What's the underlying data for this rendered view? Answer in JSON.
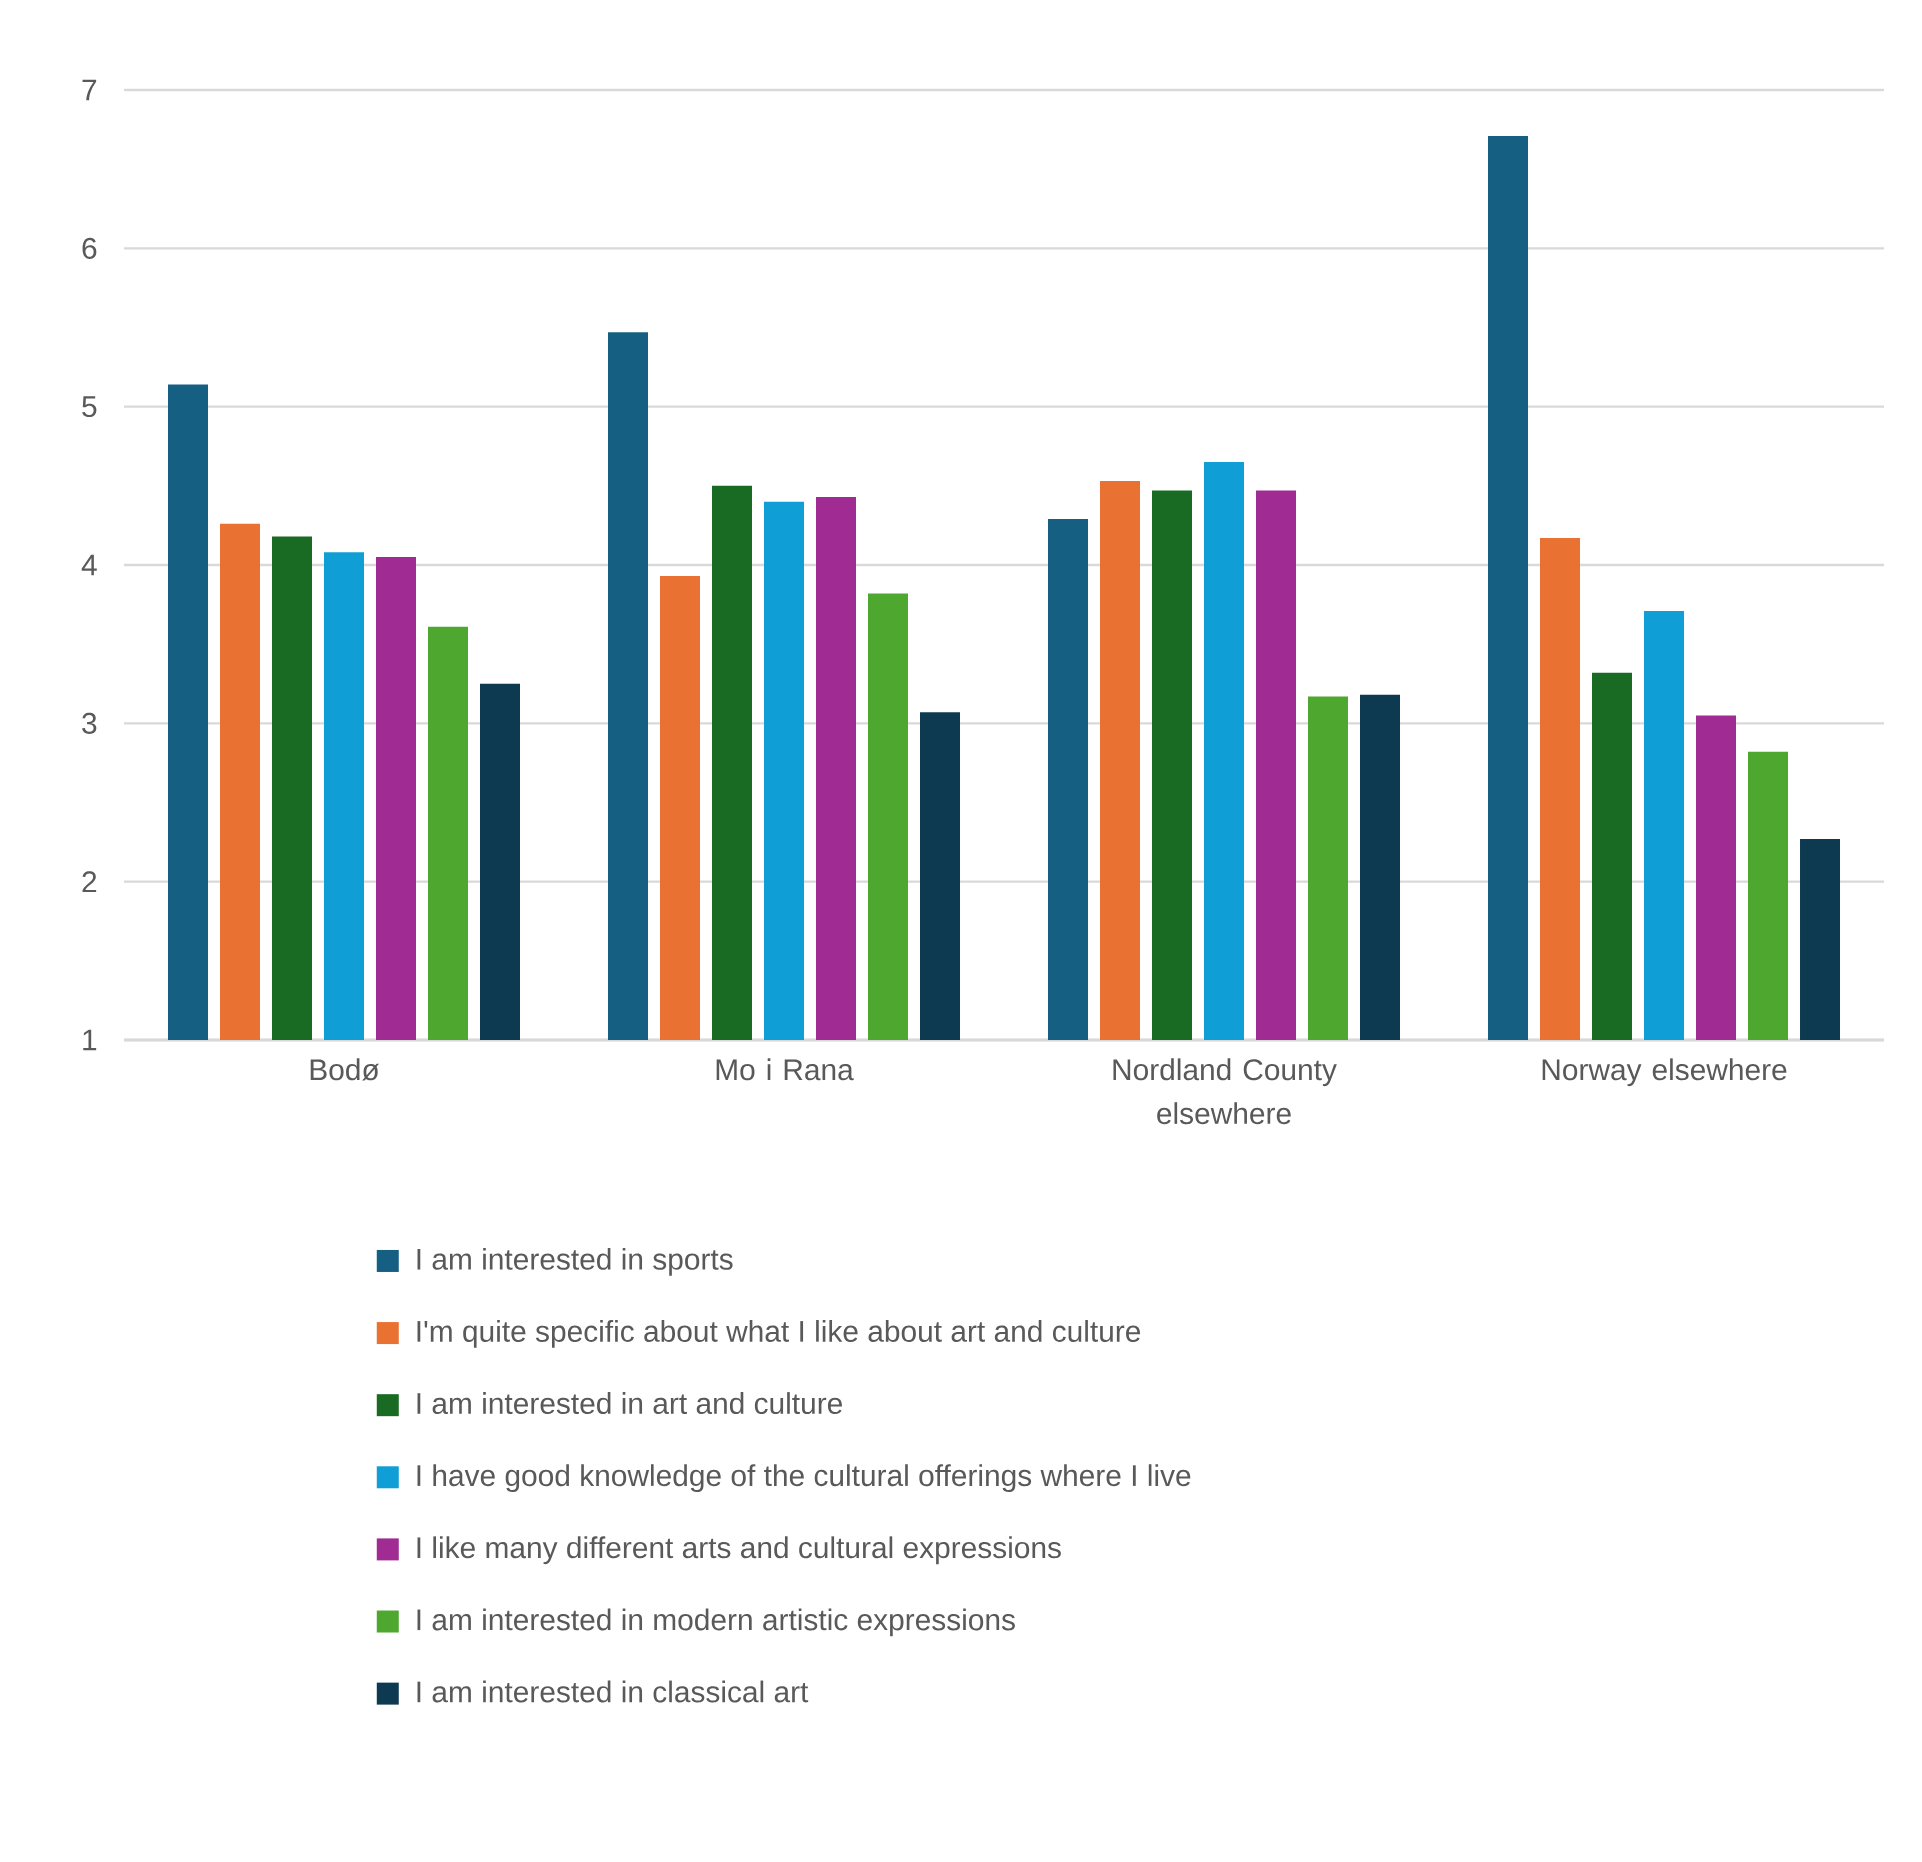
{
  "chart_data": {
    "type": "bar",
    "categories": [
      "Bodø",
      "Mo i Rana",
      "Nordland County elsewhere",
      "Norway elsewhere"
    ],
    "series": [
      {
        "name": "I am interested in sports",
        "color": "#156082",
        "values": [
          5.14,
          5.47,
          4.29,
          6.71
        ]
      },
      {
        "name": "I'm quite specific about what I like about art and culture",
        "color": "#e97132",
        "values": [
          4.26,
          3.93,
          4.53,
          4.17
        ]
      },
      {
        "name": "I am interested in art and culture",
        "color": "#196b24",
        "values": [
          4.18,
          4.5,
          4.47,
          3.32
        ]
      },
      {
        "name": "I have good knowledge of the cultural offerings where I live",
        "color": "#0f9ed5",
        "values": [
          4.08,
          4.4,
          4.65,
          3.71
        ]
      },
      {
        "name": "I like many different arts and cultural expressions",
        "color": "#a02b93",
        "values": [
          4.05,
          4.43,
          4.47,
          3.05
        ]
      },
      {
        "name": "I am interested in modern artistic expressions",
        "color": "#4ea72e",
        "values": [
          3.61,
          3.82,
          3.17,
          2.82
        ]
      },
      {
        "name": "I am interested in classical art",
        "color": "#0e3a51",
        "values": [
          3.25,
          3.07,
          3.18,
          2.27
        ]
      }
    ],
    "ylim": [
      1,
      7
    ],
    "yticks": [
      1,
      2,
      3,
      4,
      5,
      6,
      7
    ],
    "grid": "y",
    "legend": "bottom"
  }
}
